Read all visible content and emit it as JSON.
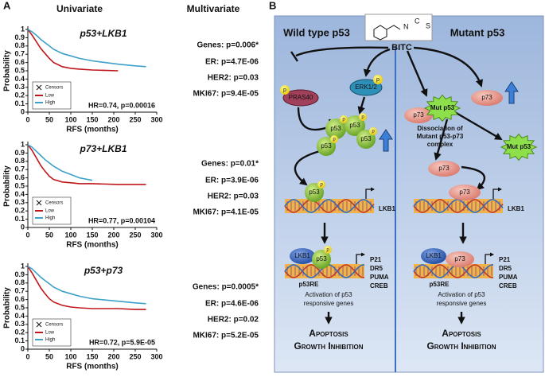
{
  "chart_data": [
    {
      "type": "line",
      "title": "p53+LKB1",
      "annotation": "HR=0.74, p=0.00016",
      "xlabel": "RFS (months)",
      "ylabel": "Probability",
      "x": [
        0,
        10,
        20,
        30,
        40,
        50,
        60,
        80,
        100,
        120,
        150,
        210,
        250,
        275
      ],
      "series": [
        {
          "name": "Low",
          "color": "#c0161b",
          "values": [
            1,
            0.93,
            0.85,
            0.77,
            0.71,
            0.65,
            0.6,
            0.55,
            0.53,
            0.52,
            0.51,
            0.5,
            null,
            null
          ]
        },
        {
          "name": "High",
          "color": "#3ca0c8",
          "values": [
            1,
            0.97,
            0.93,
            0.88,
            0.84,
            0.8,
            0.76,
            0.71,
            0.68,
            0.65,
            0.62,
            0.58,
            0.56,
            0.55
          ]
        }
      ],
      "xlim": [
        0,
        300
      ],
      "ylim": [
        0,
        1
      ],
      "xticks": [
        0,
        50,
        100,
        150,
        200,
        250,
        300
      ],
      "yticks": [
        0,
        0.1,
        0.2,
        0.3,
        0.4,
        0.5,
        0.6,
        0.7,
        0.8,
        0.9,
        1
      ],
      "censor_label": "Censors",
      "legend": "lower left"
    },
    {
      "type": "line",
      "title": "p73+LKB1",
      "annotation": "HR=0.77, p=0.00104",
      "xlabel": "RFS (months)",
      "ylabel": "Probability",
      "x": [
        0,
        10,
        20,
        30,
        40,
        50,
        60,
        80,
        100,
        120,
        150,
        210,
        250,
        275
      ],
      "series": [
        {
          "name": "Low",
          "color": "#c0161b",
          "values": [
            1,
            0.93,
            0.84,
            0.75,
            0.68,
            0.62,
            0.58,
            0.55,
            0.54,
            0.53,
            0.53,
            0.52,
            0.52,
            0.52
          ]
        },
        {
          "name": "High",
          "color": "#3ca0c8",
          "values": [
            1,
            0.97,
            0.92,
            0.87,
            0.82,
            0.78,
            0.74,
            0.68,
            0.64,
            0.6,
            0.57,
            null,
            null,
            null
          ]
        }
      ],
      "xlim": [
        0,
        300
      ],
      "ylim": [
        0,
        1
      ],
      "xticks": [
        0,
        50,
        100,
        150,
        200,
        250,
        300
      ],
      "yticks": [
        0,
        0.1,
        0.2,
        0.3,
        0.4,
        0.5,
        0.6,
        0.7,
        0.8,
        0.9,
        1
      ],
      "censor_label": "Censors",
      "legend": "lower left"
    },
    {
      "type": "line",
      "title": "p53+p73",
      "annotation": "HR=0.72, p=5.9E-05",
      "xlabel": "RFS (months)",
      "ylabel": "Probability",
      "x": [
        0,
        10,
        20,
        30,
        40,
        50,
        60,
        80,
        100,
        120,
        150,
        210,
        250,
        275
      ],
      "series": [
        {
          "name": "Low",
          "color": "#c0161b",
          "values": [
            1,
            0.92,
            0.83,
            0.74,
            0.67,
            0.61,
            0.57,
            0.53,
            0.51,
            0.5,
            0.49,
            0.49,
            0.48,
            0.48
          ]
        },
        {
          "name": "High",
          "color": "#3ca0c8",
          "values": [
            1,
            0.97,
            0.92,
            0.87,
            0.83,
            0.79,
            0.75,
            0.7,
            0.67,
            0.64,
            0.61,
            0.58,
            0.56,
            0.55
          ]
        }
      ],
      "xlim": [
        0,
        300
      ],
      "ylim": [
        0,
        1
      ],
      "xticks": [
        0,
        50,
        100,
        150,
        200,
        250,
        300
      ],
      "yticks": [
        0,
        0.1,
        0.2,
        0.3,
        0.4,
        0.5,
        0.6,
        0.7,
        0.8,
        0.9,
        1
      ],
      "censor_label": "Censors",
      "legend": "lower left"
    }
  ],
  "panel_a": {
    "label": "A",
    "header_left": "Univariate",
    "header_right": "Multivariate",
    "stats": [
      [
        "Genes: p=0.006*",
        "ER: p=4.7E-06",
        "HER2: p=0.03",
        "MKI67: p=9.4E-05"
      ],
      [
        "Genes: p=0.01*",
        "ER: p=3.9E-06",
        "HER2: p=0.03",
        "MKI67: p=4.1E-05"
      ],
      [
        "Genes: p=0.0005*",
        "ER: p=4.6E-06",
        "HER2: p=0.02",
        "MKI67: p=5.2E-05"
      ]
    ]
  },
  "panel_b": {
    "label": "B",
    "left_title": "Wild type p53",
    "right_title": "Mutant p53",
    "compound": "BITC",
    "atoms": [
      "N",
      "C",
      "S"
    ],
    "pras40": "PRAS40",
    "erk": "ERK1/2",
    "p53": "p53",
    "p73": "p73",
    "phospho": "p",
    "mut_p53": "Mut p53",
    "dissociation": [
      "Dissociation of",
      "Mutant p53-p73",
      "complex"
    ],
    "lkb1": "LKB1",
    "targets": [
      "P21",
      "DR5",
      "PUMA",
      "CREB"
    ],
    "p53re": "p53RE",
    "activation": [
      "Activation of p53",
      "responsive genes"
    ],
    "outcome": [
      "Apoptosis",
      "Growth Inhibition"
    ]
  }
}
